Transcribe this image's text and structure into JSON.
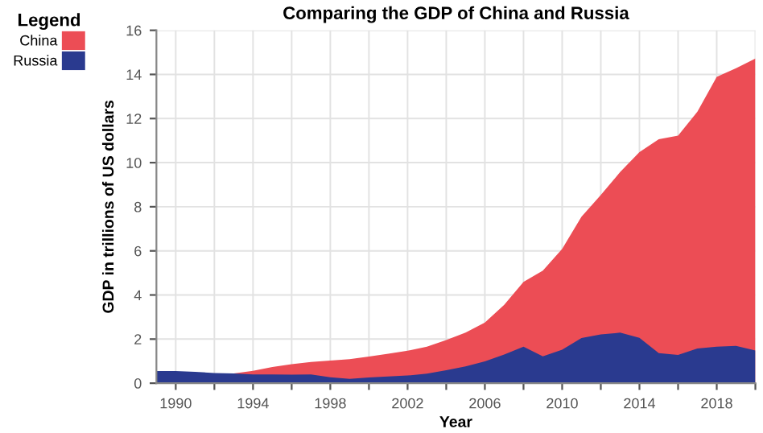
{
  "chart_data": {
    "type": "area",
    "title": "Comparing the GDP of China and Russia",
    "xlabel": "Year",
    "ylabel": "GDP in trillions of US dollars",
    "legend_title": "Legend",
    "legend": "top left",
    "grid": true,
    "x": [
      1989,
      1990,
      1991,
      1992,
      1993,
      1994,
      1995,
      1996,
      1997,
      1998,
      1999,
      2000,
      2001,
      2002,
      2003,
      2004,
      2005,
      2006,
      2007,
      2008,
      2009,
      2010,
      2011,
      2012,
      2013,
      2014,
      2015,
      2016,
      2017,
      2018,
      2019,
      2020
    ],
    "series": [
      {
        "name": "China",
        "color": "#ec4d55",
        "values": [
          null,
          null,
          null,
          null,
          0.44,
          0.56,
          0.73,
          0.86,
          0.96,
          1.03,
          1.09,
          1.21,
          1.34,
          1.47,
          1.66,
          1.96,
          2.29,
          2.75,
          3.55,
          4.59,
          5.1,
          6.09,
          7.55,
          8.53,
          9.57,
          10.48,
          11.06,
          11.23,
          12.31,
          13.89,
          14.28,
          14.72
        ]
      },
      {
        "name": "Russia",
        "color": "#2a3a8f",
        "values": [
          0.55,
          0.55,
          0.52,
          0.46,
          0.44,
          0.4,
          0.4,
          0.39,
          0.4,
          0.27,
          0.2,
          0.26,
          0.31,
          0.35,
          0.43,
          0.59,
          0.76,
          0.99,
          1.3,
          1.66,
          1.22,
          1.52,
          2.05,
          2.21,
          2.29,
          2.06,
          1.36,
          1.28,
          1.57,
          1.66,
          1.69,
          1.48
        ]
      }
    ],
    "xlim": [
      1989,
      2020
    ],
    "ylim": [
      0,
      16
    ],
    "xticks": [
      1990,
      {
        "value": 1992,
        "label": null
      },
      1994,
      {
        "value": 1996,
        "label": null
      },
      1998,
      {
        "value": 2000,
        "label": null
      },
      2002,
      {
        "value": 2004,
        "label": null
      },
      2006,
      {
        "value": 2008,
        "label": null
      },
      2010,
      {
        "value": 2012,
        "label": null
      },
      2014,
      {
        "value": 2016,
        "label": null
      },
      2018,
      {
        "value": 2020,
        "label": null
      }
    ],
    "yticks": [
      0,
      2,
      4,
      6,
      8,
      10,
      12,
      14,
      16
    ]
  }
}
